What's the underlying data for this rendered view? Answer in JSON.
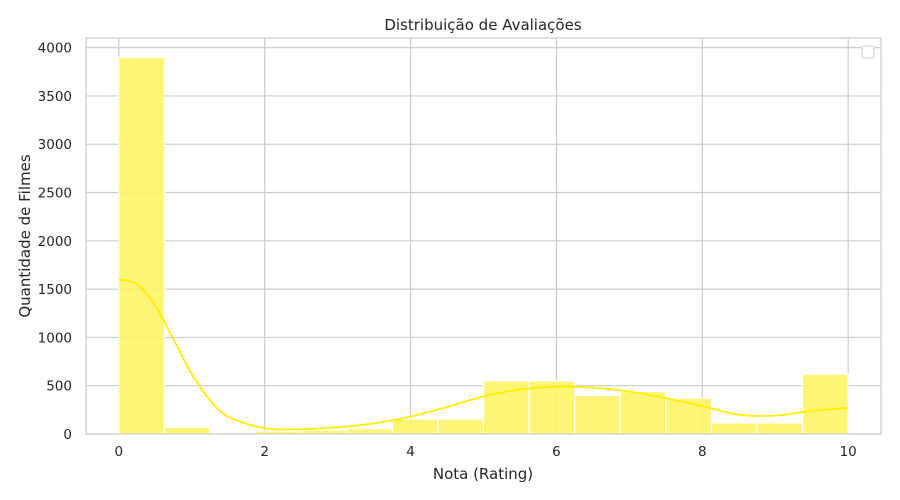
{
  "chart_data": {
    "type": "bar",
    "title": "Distribuição de Avaliações",
    "xlabel": "Nota (Rating)",
    "ylabel": "Quantidade de Filmes",
    "xlim": [
      -0.45,
      10.45
    ],
    "ylim": [
      0,
      4100
    ],
    "xticks": [
      0,
      2,
      4,
      6,
      8,
      10
    ],
    "yticks": [
      0,
      500,
      1000,
      1500,
      2000,
      2500,
      3000,
      3500,
      4000
    ],
    "grid": true,
    "legend": "top-right (empty)",
    "bar_color": "#fff466",
    "kde_color": "#ffee00",
    "bins": [
      {
        "start": 0.0,
        "end": 0.625,
        "count": 3900
      },
      {
        "start": 0.625,
        "end": 1.25,
        "count": 70
      },
      {
        "start": 1.25,
        "end": 1.875,
        "count": 10
      },
      {
        "start": 1.875,
        "end": 2.5,
        "count": 30
      },
      {
        "start": 2.5,
        "end": 3.125,
        "count": 40
      },
      {
        "start": 3.125,
        "end": 3.75,
        "count": 55
      },
      {
        "start": 3.75,
        "end": 4.375,
        "count": 155
      },
      {
        "start": 4.375,
        "end": 5.0,
        "count": 155
      },
      {
        "start": 5.0,
        "end": 5.625,
        "count": 550
      },
      {
        "start": 5.625,
        "end": 6.25,
        "count": 550
      },
      {
        "start": 6.25,
        "end": 6.875,
        "count": 400
      },
      {
        "start": 6.875,
        "end": 7.5,
        "count": 440
      },
      {
        "start": 7.5,
        "end": 8.125,
        "count": 370
      },
      {
        "start": 8.125,
        "end": 8.75,
        "count": 115
      },
      {
        "start": 8.75,
        "end": 9.375,
        "count": 115
      },
      {
        "start": 9.375,
        "end": 10.0,
        "count": 620
      }
    ],
    "kde": {
      "x": [
        0.0,
        0.25,
        0.5,
        0.75,
        1.0,
        1.25,
        1.5,
        2.0,
        2.5,
        3.0,
        3.5,
        4.0,
        4.5,
        5.0,
        5.5,
        6.0,
        6.5,
        7.0,
        7.5,
        8.0,
        8.5,
        9.0,
        9.5,
        10.0
      ],
      "y": [
        1600,
        1550,
        1330,
        980,
        620,
        350,
        180,
        60,
        50,
        70,
        110,
        180,
        280,
        390,
        460,
        490,
        480,
        440,
        370,
        290,
        200,
        190,
        240,
        270
      ]
    }
  }
}
